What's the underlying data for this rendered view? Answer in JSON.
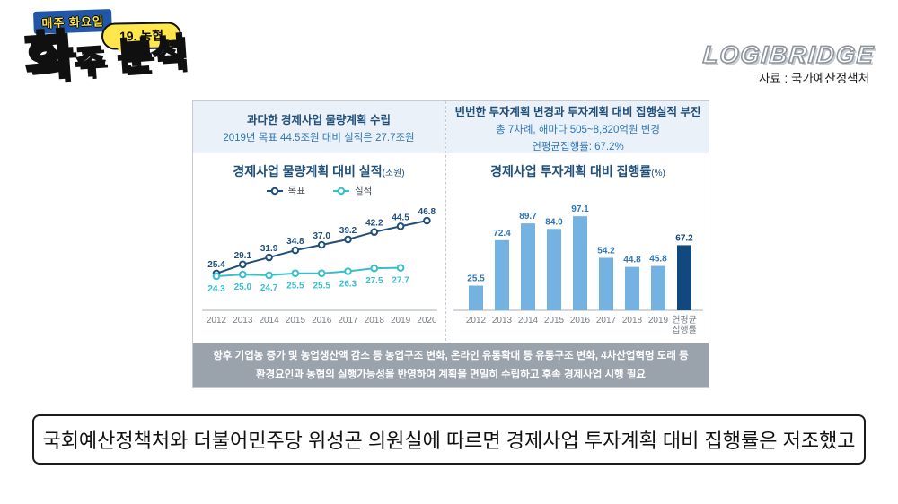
{
  "branding": {
    "weekly_badge": "매주 화요일",
    "episode_badge": "19. 농협",
    "logo_word_1": "화",
    "logo_word_2": "주",
    "logo_word_3": "분석",
    "brand_logo": "LOGIBRIDGE",
    "source": "자료 : 국가예산정책처"
  },
  "panels": {
    "left": {
      "header_title": "과다한 경제사업 물량계획 수립",
      "header_subtitle": "2019년 목표 44.5조원 대비 실적은 27.7조원"
    },
    "right": {
      "header_title": "빈번한 투자계획 변경과 투자계획 대비 집행실적 부진",
      "header_subtitle": "총 7차례, 해마다 505~8,820억원 변경",
      "header_subtitle2": "연평균집행률: 67.2%"
    }
  },
  "chart_data": [
    {
      "type": "line",
      "title": "경제사업 물량계획 대비 실적",
      "unit": "(조원)",
      "categories": [
        "2012",
        "2013",
        "2014",
        "2015",
        "2016",
        "2017",
        "2018",
        "2019",
        "2020"
      ],
      "series": [
        {
          "name": "목표",
          "color": "#1F4E79",
          "values": [
            25.4,
            29.1,
            31.9,
            34.8,
            37.0,
            39.2,
            42.2,
            44.5,
            46.8
          ]
        },
        {
          "name": "실적",
          "color": "#38BFCD",
          "values": [
            24.3,
            25.0,
            24.7,
            25.5,
            25.5,
            26.3,
            27.5,
            27.7
          ]
        }
      ],
      "legend_position": "top",
      "grid": false,
      "ylim": [
        22,
        50
      ]
    },
    {
      "type": "bar",
      "title": "경제사업 투자계획 대비 집행률",
      "unit": "(%)",
      "categories": [
        "2012",
        "2013",
        "2014",
        "2015",
        "2016",
        "2017",
        "2018",
        "2019",
        "연평균\n집행률"
      ],
      "values": [
        25.5,
        72.4,
        89.7,
        84.0,
        97.1,
        54.2,
        44.8,
        45.8,
        67.2
      ],
      "bar_color": "#74B2E2",
      "highlight_index": 8,
      "highlight_color": "#12487E",
      "label_color": "#2E75B6",
      "highlight_label_color": "#12487E",
      "grid": false,
      "ylim": [
        0,
        100
      ]
    }
  ],
  "note": {
    "line1": "향후 기업농 증가 및 농업생산액 감소 등 농업구조 변화, 온라인 유통확대 등 유통구조 변화, 4차산업혁명 도래 등",
    "line2": "환경요인과 농협의 실행가능성을 반영하여 계획을 면밀히 수립하고 후속 경제사업 시행 필요"
  },
  "caption": "국회예산정책처와 더불어민주당 위성곤 의원실에 따르면 경제사업 투자계획 대비 집행률은 저조했고",
  "colors": {
    "accent_navy": "#1F4E79",
    "accent_blue": "#2E75B6",
    "accent_cyan": "#38BFCD",
    "bar_light": "#74B2E2",
    "bar_dark": "#12487E",
    "panel_header_bg": "#EBF1F8",
    "note_bg": "#9AA2AC",
    "badge_blue": "#2157A6",
    "badge_yellow": "#FFE64A",
    "axis_line": "#d2d7dd"
  }
}
